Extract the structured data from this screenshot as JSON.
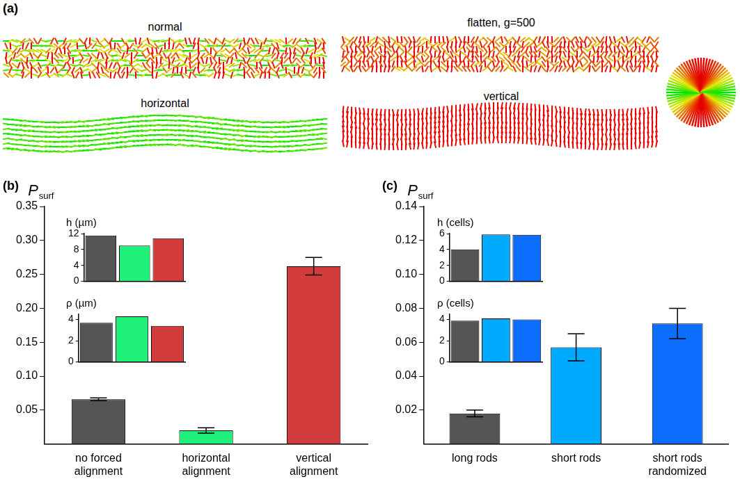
{
  "panel_a": {
    "letter": "(a)",
    "labels": [
      "normal",
      "flatten, g=500",
      "horizontal",
      "vertical"
    ]
  },
  "chart_data": [
    {
      "type": "bar",
      "letter": "(b)",
      "ylabel": "Psurf",
      "categories": [
        "no forced alignment",
        "horizontal alignment",
        "vertical alignment"
      ],
      "values": [
        0.066,
        0.02,
        0.262
      ],
      "errors": [
        0.002,
        0.004,
        0.013
      ],
      "colors": [
        "#555555",
        "#1ef07a",
        "#d23c3c"
      ],
      "ylim": [
        0,
        0.35
      ],
      "yticks": [
        0.05,
        {
          "value": 0.1,
          "label": "0.10"
        },
        0.15,
        {
          "value": 0.2,
          "label": "0.20"
        },
        0.25,
        {
          "value": 0.3,
          "label": "0.30"
        },
        0.35
      ],
      "grid": false
    },
    {
      "type": "bar",
      "title": "h (µm)",
      "values": [
        11.5,
        9.0,
        10.8
      ],
      "colors": [
        "#555555",
        "#1ef07a",
        "#d23c3c"
      ],
      "ylim": [
        0,
        12
      ],
      "yticks": [
        0,
        4,
        8,
        12
      ],
      "grid": false,
      "tick_labels": "y"
    },
    {
      "type": "bar",
      "title": "ρ (µm)",
      "values": [
        3.7,
        4.3,
        3.4
      ],
      "colors": [
        "#555555",
        "#1ef07a",
        "#d23c3c"
      ],
      "ylim": [
        0,
        4.5
      ],
      "yticks": [
        0,
        2,
        4
      ],
      "grid": false,
      "tick_labels": "y"
    },
    {
      "type": "bar",
      "letter": "(c)",
      "ylabel": "Psurf",
      "categories": [
        "long rods",
        "short rods",
        "short rods randomized"
      ],
      "values": [
        0.018,
        0.057,
        0.071
      ],
      "errors": [
        0.002,
        0.008,
        0.009
      ],
      "colors": [
        "#555555",
        "#00aaff",
        "#0d6efd"
      ],
      "ylim": [
        0,
        0.14
      ],
      "yticks": [
        0.02,
        0.04,
        0.06,
        0.08,
        {
          "value": 0.1,
          "label": "0.10"
        },
        0.12,
        0.14
      ],
      "grid": false
    },
    {
      "type": "bar",
      "title": "h (cells)",
      "values": [
        4.0,
        5.9,
        5.85
      ],
      "colors": [
        "#555555",
        "#00aaff",
        "#0d6efd"
      ],
      "ylim": [
        0,
        6
      ],
      "yticks": [
        0,
        2,
        4,
        6
      ],
      "grid": false,
      "tick_labels": "y"
    },
    {
      "type": "bar",
      "title": "ρ (cells)",
      "values": [
        3.9,
        4.1,
        4.0
      ],
      "colors": [
        "#555555",
        "#00aaff",
        "#0d6efd"
      ],
      "ylim": [
        0,
        4.5
      ],
      "yticks": [
        0,
        2,
        4
      ],
      "grid": false,
      "tick_labels": "y"
    }
  ]
}
